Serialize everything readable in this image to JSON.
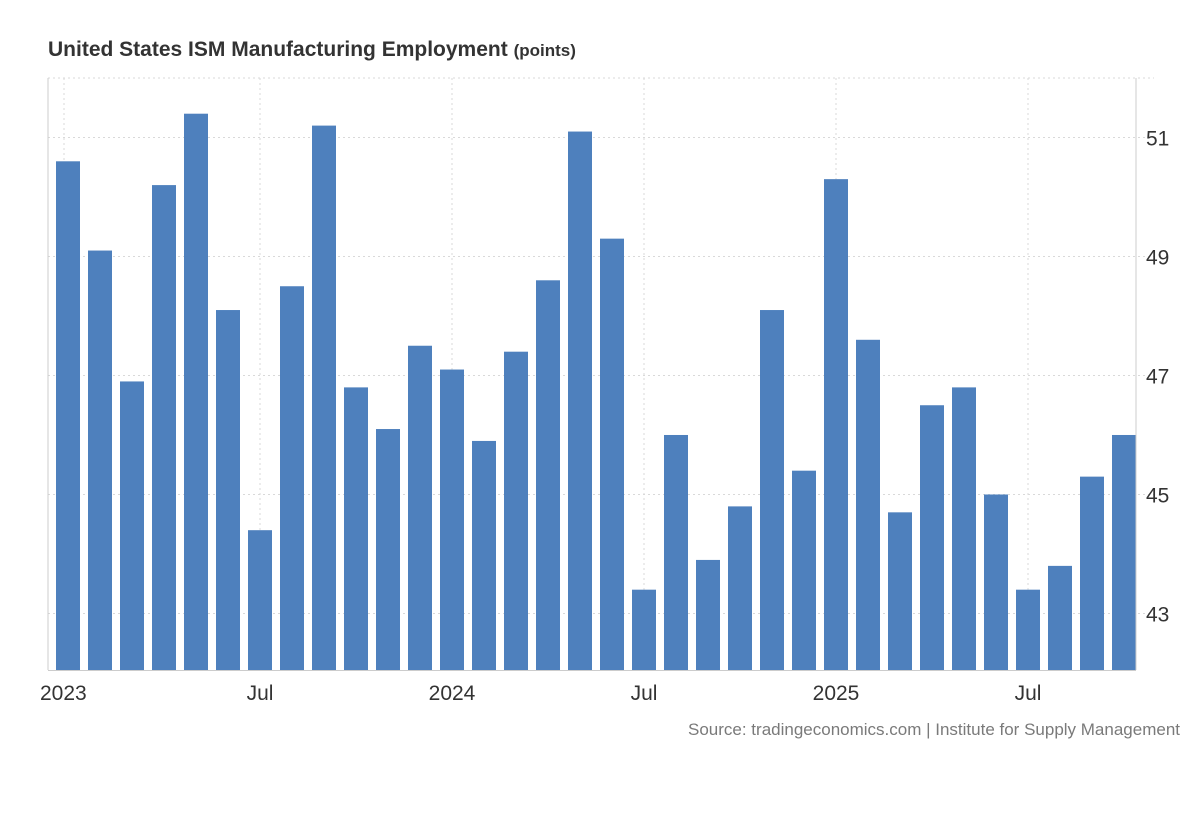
{
  "chart_data": {
    "type": "bar",
    "title": "United States ISM Manufacturing Employment",
    "unit_label": "(points)",
    "source": "Source: tradingeconomics.com | Institute for Supply Management",
    "bar_color": "#4e80bd",
    "grid_color": "#d9d9d9",
    "axis_text_color": "#333333",
    "grid": true,
    "y_axis_side": "right",
    "ylim": [
      42.05,
      52.0
    ],
    "y_ticks": [
      43,
      45,
      47,
      49,
      51
    ],
    "x_tick_labels": [
      {
        "index": 0,
        "label": "2023"
      },
      {
        "index": 6,
        "label": "Jul"
      },
      {
        "index": 12,
        "label": "2024"
      },
      {
        "index": 18,
        "label": "Jul"
      },
      {
        "index": 24,
        "label": "2025"
      },
      {
        "index": 30,
        "label": "Jul"
      }
    ],
    "categories": [
      "2023-01",
      "2023-02",
      "2023-03",
      "2023-04",
      "2023-05",
      "2023-06",
      "2023-07",
      "2023-08",
      "2023-09",
      "2023-10",
      "2023-11",
      "2023-12",
      "2024-01",
      "2024-02",
      "2024-03",
      "2024-04",
      "2024-05",
      "2024-06",
      "2024-07",
      "2024-08",
      "2024-09",
      "2024-10",
      "2024-11",
      "2024-12",
      "2025-01",
      "2025-02",
      "2025-03",
      "2025-04",
      "2025-05",
      "2025-06",
      "2025-07",
      "2025-08",
      "2025-09",
      "2025-10"
    ],
    "values": [
      50.6,
      49.1,
      46.9,
      50.2,
      51.4,
      48.1,
      44.4,
      48.5,
      51.2,
      46.8,
      46.1,
      47.5,
      47.1,
      45.9,
      47.4,
      48.6,
      51.1,
      49.3,
      43.4,
      46.0,
      43.9,
      44.8,
      48.1,
      45.4,
      50.3,
      47.6,
      44.7,
      46.5,
      46.8,
      45.0,
      43.4,
      43.8,
      45.3,
      46.0
    ]
  }
}
